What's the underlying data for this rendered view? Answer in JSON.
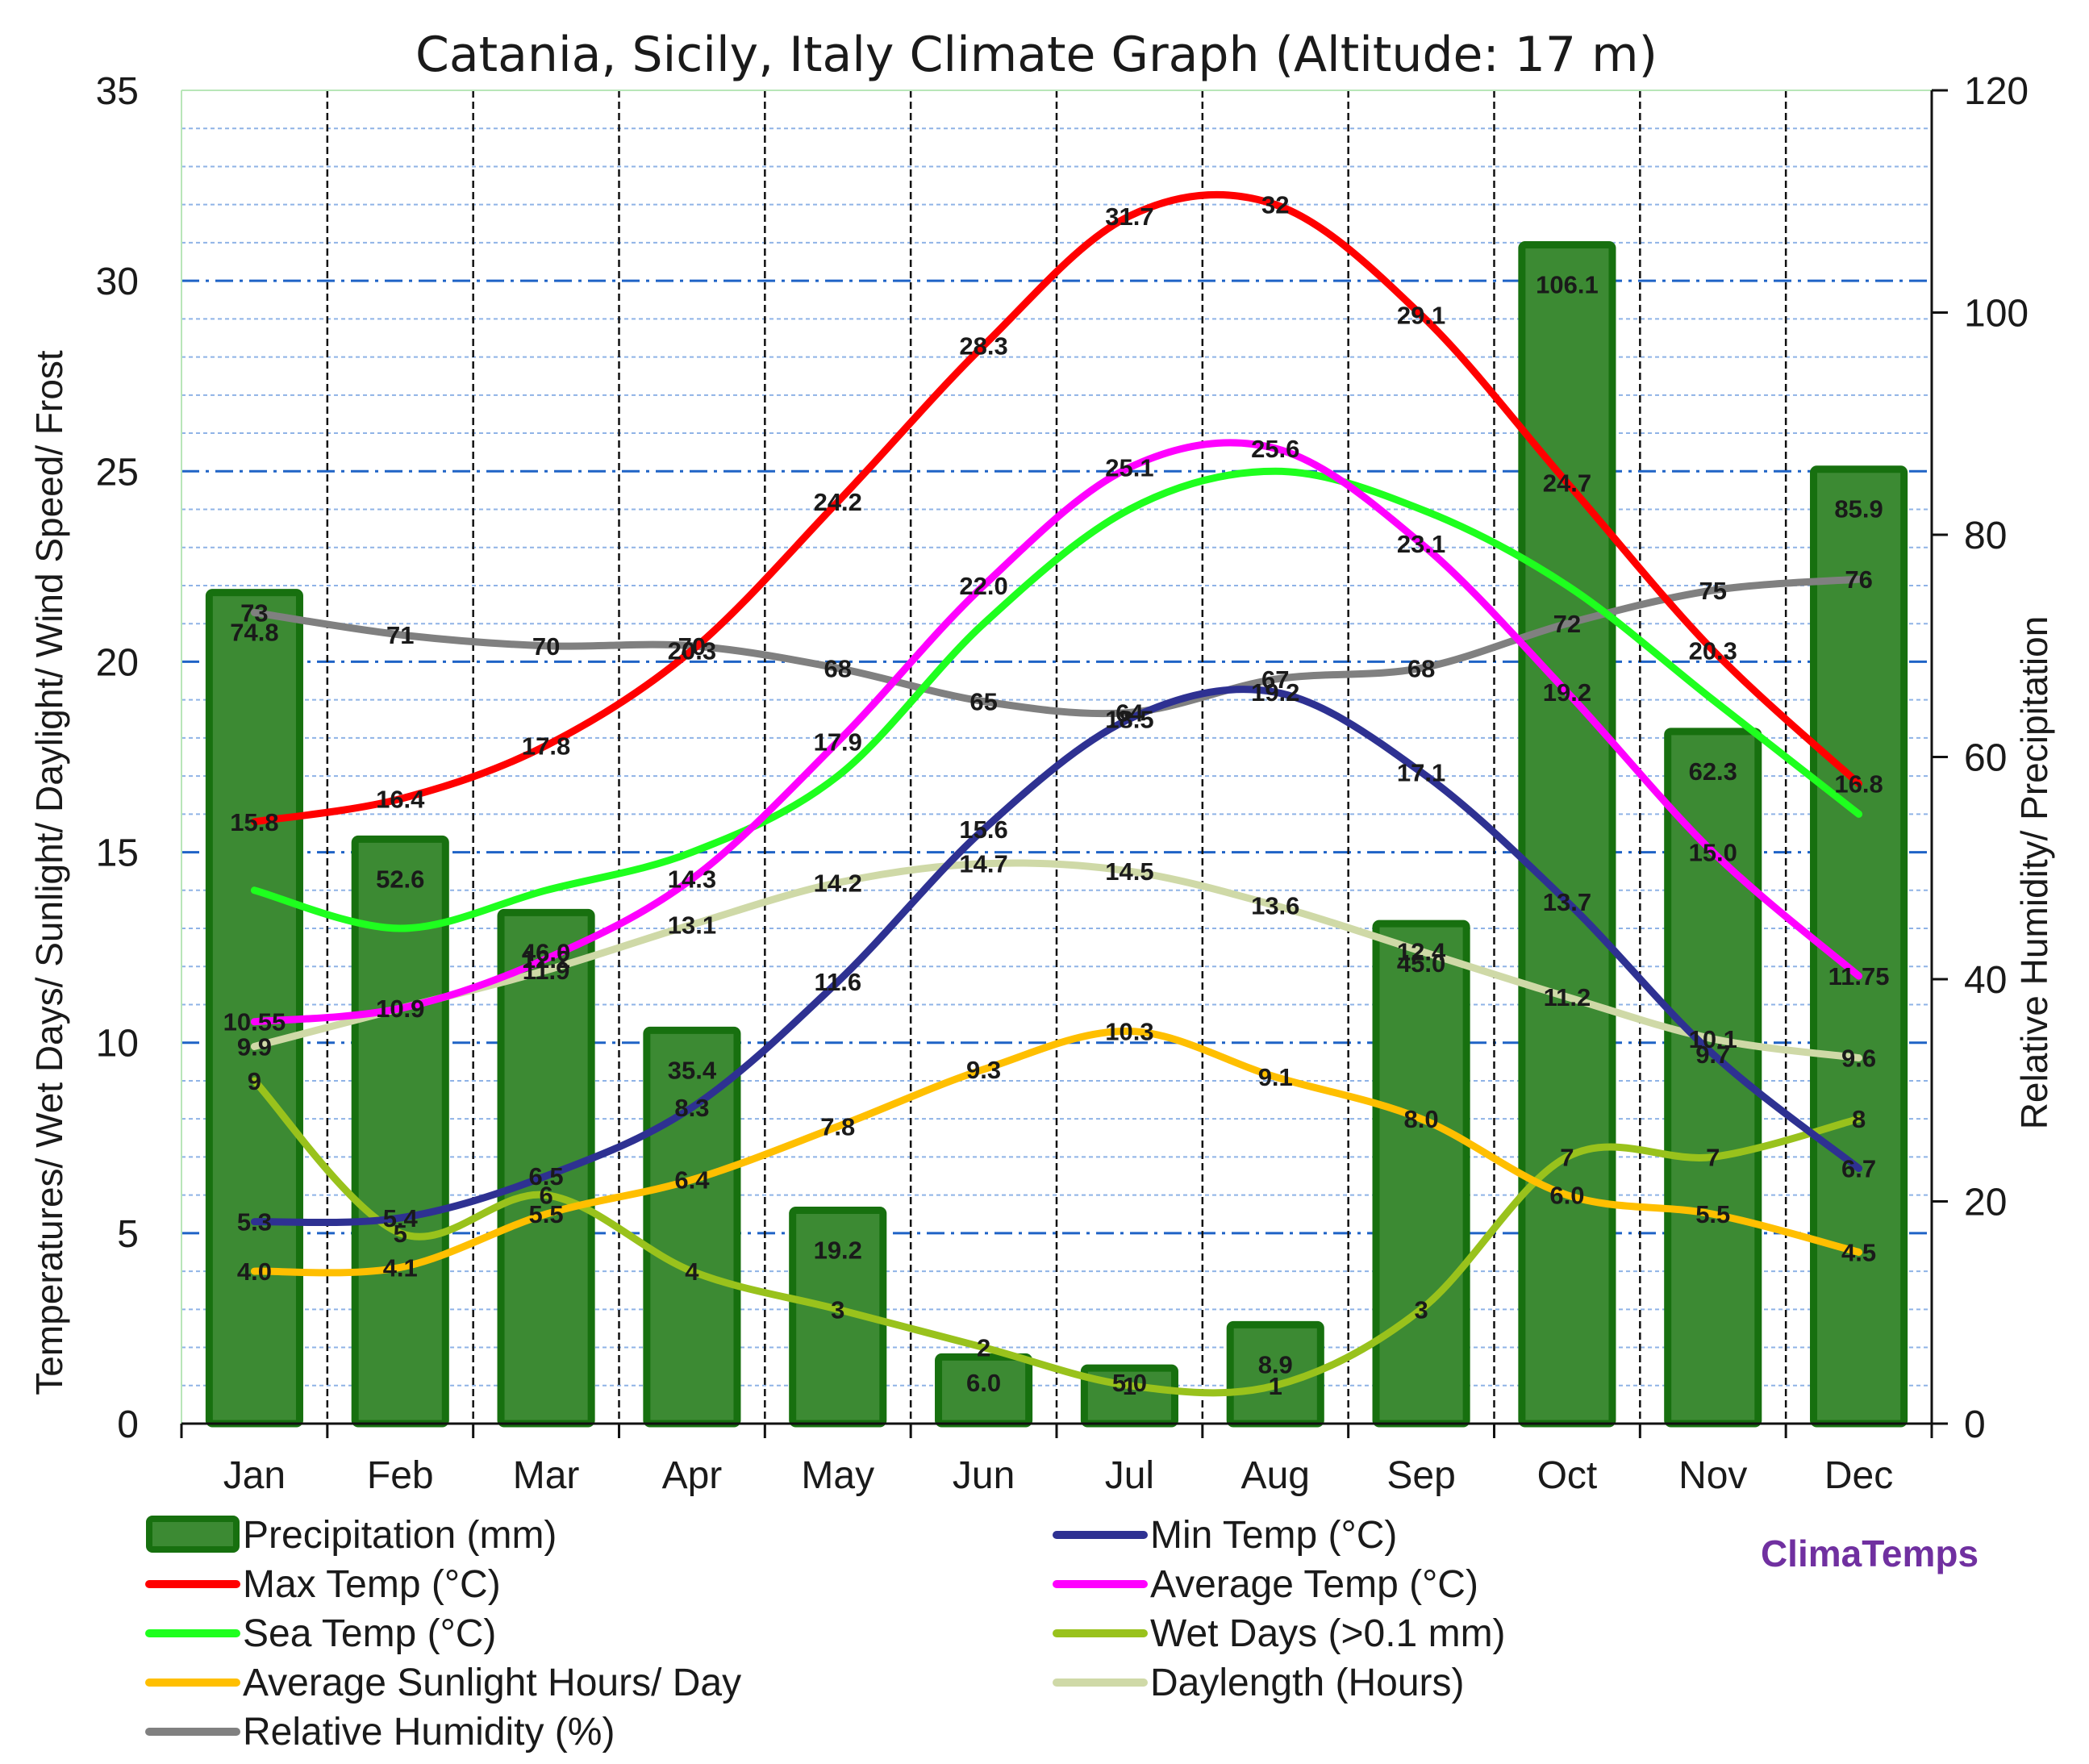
{
  "chart_data": {
    "type": "bar+line",
    "title": "Catania, Sicily, Italy Climate Graph (Altitude: 17 m)",
    "ylabel_left": "Temperatures/ Wet Days/ Sunlight/ Daylight/ Wind Speed/ Frost",
    "ylabel_right": "Relative Humidity/ Precipitation",
    "ylim_left": [
      0,
      35
    ],
    "ylim_right": [
      0,
      120
    ],
    "yticks_left": [
      "0",
      "5",
      "10",
      "15",
      "20",
      "25",
      "30",
      "35"
    ],
    "yticks_right": [
      "0",
      "20",
      "40",
      "60",
      "80",
      "100",
      "120"
    ],
    "categories": [
      "Jan",
      "Feb",
      "Mar",
      "Apr",
      "May",
      "Jun",
      "Jul",
      "Aug",
      "Sep",
      "Oct",
      "Nov",
      "Dec"
    ],
    "bars": {
      "name": "Precipitation (mm)",
      "axis": "right",
      "color": "#3c8a33",
      "values": [
        74.8,
        52.6,
        46.0,
        35.4,
        19.2,
        6.0,
        5.0,
        8.9,
        45.0,
        106.1,
        62.3,
        85.9
      ],
      "labels": [
        "74.8",
        "52.6",
        "46.0",
        "35.4",
        "19.2",
        "6.0",
        "5.0",
        "8.9",
        "45.0",
        "106.1",
        "62.3",
        "85.9"
      ]
    },
    "series": [
      {
        "name": "Daylength (Hours)",
        "axis": "left",
        "color": "#cfd9a7",
        "values": [
          9.9,
          10.9,
          11.9,
          13.1,
          14.2,
          14.7,
          14.5,
          13.6,
          12.4,
          11.2,
          10.1,
          9.6
        ],
        "labels": [
          "9.9",
          "10.9",
          "11.9",
          "13.1",
          "14.2",
          "14.7",
          "14.5",
          "13.6",
          "12.4",
          "11.2",
          "10.1",
          "9.6"
        ]
      },
      {
        "name": "Relative Humidity (%)",
        "axis": "right",
        "color": "#808080",
        "values": [
          73,
          71,
          70,
          70,
          68,
          65,
          64,
          67,
          68,
          72,
          75,
          76
        ],
        "labels": [
          "73",
          "71",
          "70",
          "70",
          "68",
          "65",
          "64",
          "67",
          "68",
          "72",
          "75",
          "76"
        ]
      },
      {
        "name": "Sea Temp (°C)",
        "axis": "left",
        "color": "#1eff1e",
        "values": [
          14,
          13,
          14,
          15,
          17,
          21,
          24,
          25,
          24,
          22,
          19,
          16
        ],
        "labels": [
          "",
          "",
          "",
          "",
          "",
          "",
          "",
          "",
          "",
          "",
          "",
          ""
        ]
      },
      {
        "name": "Wet Days (>0.1 mm)",
        "axis": "left",
        "color": "#99c21c",
        "values": [
          9,
          5,
          6,
          4,
          3,
          2,
          1,
          1,
          3,
          7,
          7,
          8
        ],
        "labels": [
          "9",
          "5",
          "6",
          "4",
          "3",
          "2",
          "1",
          "1",
          "3",
          "7",
          "7",
          "8"
        ]
      },
      {
        "name": "Average Sunlight Hours/ Day",
        "axis": "left",
        "color": "#ffbf00",
        "values": [
          4.0,
          4.1,
          5.5,
          6.4,
          7.8,
          9.3,
          10.3,
          9.1,
          8.0,
          6.0,
          5.5,
          4.5
        ],
        "labels": [
          "4.0",
          "4.1",
          "5.5",
          "6.4",
          "7.8",
          "9.3",
          "10.3",
          "9.1",
          "8.0",
          "6.0",
          "5.5",
          "4.5"
        ]
      },
      {
        "name": "Min Temp (°C)",
        "axis": "left",
        "color": "#2e3192",
        "values": [
          5.3,
          5.4,
          6.5,
          8.3,
          11.6,
          15.6,
          18.5,
          19.2,
          17.1,
          13.7,
          9.7,
          6.7
        ],
        "labels": [
          "5.3",
          "5.4",
          "6.5",
          "8.3",
          "11.6",
          "15.6",
          "18.5",
          "19.2",
          "17.1",
          "13.7",
          "9.7",
          "6.7"
        ]
      },
      {
        "name": "Average Temp (°C)",
        "axis": "left",
        "color": "#ff00ff",
        "values": [
          10.55,
          10.9,
          12.2,
          14.3,
          17.9,
          22.0,
          25.1,
          25.6,
          23.1,
          19.2,
          15.0,
          11.75
        ],
        "labels": [
          "10.55",
          "10.9",
          "12.2",
          "14.3",
          "17.9",
          "22.0",
          "25.1",
          "25.6",
          "23.1",
          "19.2",
          "15.0",
          "11.75"
        ]
      },
      {
        "name": "Max Temp (°C)",
        "axis": "left",
        "color": "#ff0000",
        "values": [
          15.8,
          16.4,
          17.8,
          20.3,
          24.2,
          28.3,
          31.7,
          32,
          29.1,
          24.7,
          20.3,
          16.8
        ],
        "labels": [
          "15.8",
          "16.4",
          "17.8",
          "20.3",
          "24.2",
          "28.3",
          "31.7",
          "32",
          "29.1",
          "24.7",
          "20.3",
          "16.8"
        ]
      }
    ],
    "legend": [
      {
        "label": "Precipitation (mm)",
        "color": "#3c8a33",
        "kind": "bar"
      },
      {
        "label": "Min Temp (°C)",
        "color": "#2e3192",
        "kind": "line"
      },
      {
        "label": "Max Temp (°C)",
        "color": "#ff0000",
        "kind": "line"
      },
      {
        "label": "Average Temp (°C)",
        "color": "#ff00ff",
        "kind": "line"
      },
      {
        "label": "Sea Temp (°C)",
        "color": "#1eff1e",
        "kind": "line"
      },
      {
        "label": "Wet Days (>0.1 mm)",
        "color": "#99c21c",
        "kind": "line"
      },
      {
        "label": "Average Sunlight Hours/ Day",
        "color": "#ffbf00",
        "kind": "line"
      },
      {
        "label": "Daylength (Hours)",
        "color": "#cfd9a7",
        "kind": "line"
      },
      {
        "label": "Relative Humidity (%)",
        "color": "#808080",
        "kind": "line"
      }
    ],
    "brand": {
      "text": "ClimaTemps",
      "color": "#7030a0"
    }
  }
}
